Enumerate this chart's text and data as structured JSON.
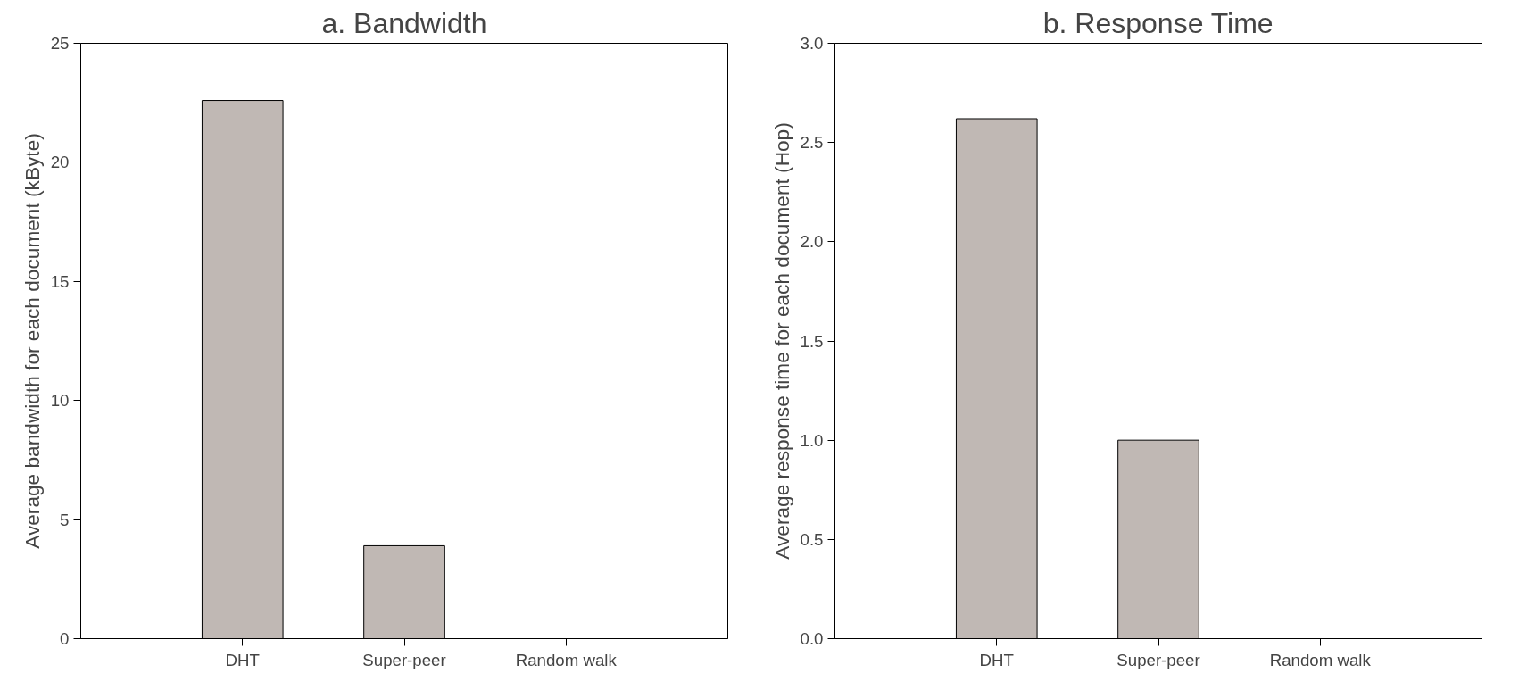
{
  "chart_data": [
    {
      "type": "bar",
      "title": "a. Bandwidth",
      "ylabel": "Average bandwidth for each document (kByte)",
      "categories": [
        "DHT",
        "Super-peer",
        "Random walk"
      ],
      "values": [
        22.6,
        3.9,
        null
      ],
      "color": "#c0b8b4",
      "ylim": [
        0,
        25
      ],
      "yticks": [
        0,
        5,
        10,
        15,
        20,
        25
      ],
      "grid": false
    },
    {
      "type": "bar",
      "title": "b. Response Time",
      "ylabel": "Average response time for each document (Hop)",
      "categories": [
        "DHT",
        "Super-peer",
        "Random walk"
      ],
      "values": [
        2.62,
        1.0,
        null
      ],
      "color": "#c0b8b4",
      "ylim": [
        0,
        3.0
      ],
      "yticks": [
        {
          "value": 0,
          "label": "0.0"
        },
        {
          "value": 0.5,
          "label": "0.5"
        },
        {
          "value": 1,
          "label": "1.0"
        },
        {
          "value": 1.5,
          "label": "1.5"
        },
        {
          "value": 2,
          "label": "2.0"
        },
        {
          "value": 2.5,
          "label": "2.5"
        },
        {
          "value": 3,
          "label": "3.0"
        }
      ],
      "grid": false
    }
  ]
}
